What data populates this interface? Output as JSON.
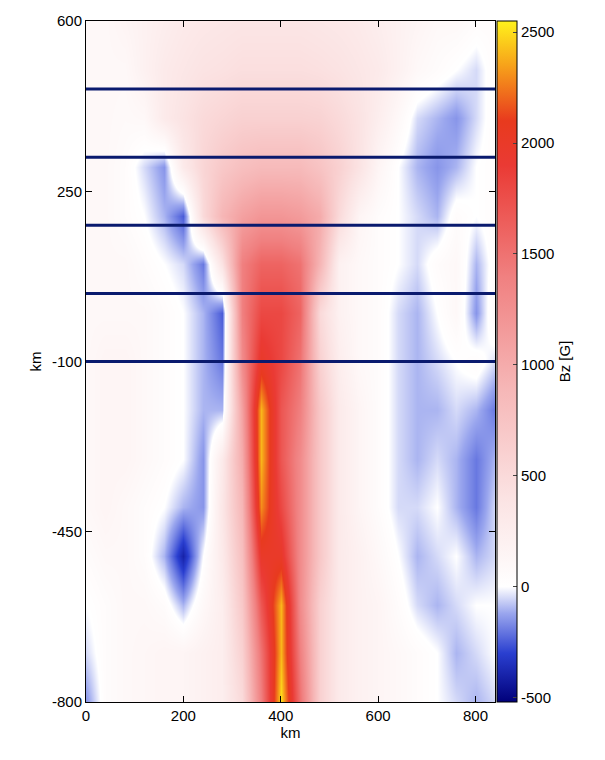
{
  "chart_data": {
    "type": "heatmap",
    "xlabel": "km",
    "ylabel": "km",
    "xlim": [
      0,
      840
    ],
    "ylim": [
      -800,
      600
    ],
    "xticks": [
      0,
      200,
      400,
      600,
      800
    ],
    "yticks": [
      -800,
      -450,
      -100,
      250,
      600
    ],
    "colorbar_title": "Bz [G]",
    "zlim": [
      -520,
      2550
    ],
    "colorbar_ticks": [
      -500,
      0,
      500,
      1000,
      1500,
      2000,
      2500
    ],
    "hlines": [
      -100,
      40,
      180,
      320,
      460
    ],
    "color": "#0a1a6e",
    "x": [
      0,
      40,
      80,
      120,
      160,
      200,
      240,
      280,
      320,
      360,
      400,
      440,
      480,
      520,
      560,
      600,
      640,
      680,
      720,
      760,
      800,
      840
    ],
    "y": [
      -800,
      -700,
      -600,
      -500,
      -400,
      -300,
      -200,
      -100,
      0,
      100,
      200,
      300,
      400,
      500,
      600
    ],
    "z": [
      [
        -150,
        50,
        100,
        120,
        150,
        150,
        200,
        250,
        500,
        1400,
        2500,
        1500,
        600,
        300,
        200,
        150,
        100,
        50,
        0,
        -50,
        -100,
        -50
      ],
      [
        -50,
        50,
        100,
        120,
        150,
        150,
        200,
        250,
        600,
        1500,
        2400,
        1400,
        600,
        300,
        200,
        150,
        100,
        50,
        0,
        -100,
        -50,
        0
      ],
      [
        0,
        50,
        100,
        100,
        50,
        -100,
        100,
        250,
        700,
        1700,
        2400,
        1300,
        600,
        300,
        200,
        150,
        50,
        -50,
        -100,
        -50,
        0,
        0
      ],
      [
        50,
        100,
        100,
        50,
        -100,
        -400,
        0,
        300,
        800,
        2000,
        2000,
        1300,
        700,
        300,
        200,
        100,
        0,
        -100,
        -50,
        0,
        -100,
        -50
      ],
      [
        100,
        150,
        100,
        50,
        0,
        -100,
        -150,
        350,
        900,
        2300,
        1800,
        1300,
        700,
        300,
        150,
        50,
        -50,
        -50,
        0,
        -100,
        -200,
        -50
      ],
      [
        100,
        150,
        150,
        100,
        50,
        0,
        -150,
        300,
        1000,
        2400,
        1700,
        1300,
        700,
        300,
        150,
        50,
        -50,
        -100,
        -50,
        -100,
        -200,
        -100
      ],
      [
        100,
        150,
        150,
        100,
        50,
        0,
        -100,
        -100,
        1100,
        2400,
        1700,
        1400,
        700,
        300,
        150,
        50,
        -50,
        -100,
        -100,
        -50,
        -100,
        -200
      ],
      [
        100,
        150,
        150,
        100,
        50,
        0,
        -100,
        -200,
        1300,
        2000,
        1800,
        1500,
        600,
        250,
        100,
        50,
        -50,
        -100,
        -50,
        0,
        50,
        -50
      ],
      [
        100,
        100,
        100,
        100,
        50,
        0,
        -100,
        -250,
        1400,
        1800,
        1800,
        1600,
        500,
        200,
        100,
        50,
        -50,
        -100,
        0,
        100,
        -150,
        100
      ],
      [
        100,
        100,
        100,
        50,
        0,
        -50,
        -200,
        400,
        1400,
        1600,
        1600,
        1500,
        900,
        200,
        100,
        50,
        0,
        -50,
        50,
        100,
        -100,
        50
      ],
      [
        100,
        100,
        50,
        0,
        -100,
        -250,
        500,
        900,
        1100,
        1200,
        1200,
        1150,
        1000,
        500,
        150,
        50,
        0,
        -50,
        -100,
        50,
        0,
        50
      ],
      [
        100,
        100,
        50,
        -50,
        -150,
        300,
        550,
        700,
        800,
        850,
        850,
        850,
        750,
        600,
        400,
        150,
        0,
        -100,
        -150,
        -100,
        0,
        50
      ],
      [
        100,
        100,
        80,
        100,
        300,
        400,
        500,
        550,
        600,
        600,
        600,
        600,
        580,
        500,
        400,
        250,
        100,
        -50,
        -100,
        -150,
        -50,
        50
      ],
      [
        100,
        100,
        100,
        200,
        300,
        350,
        400,
        420,
        450,
        450,
        450,
        450,
        430,
        400,
        350,
        300,
        200,
        100,
        50,
        0,
        -50,
        50
      ],
      [
        100,
        100,
        150,
        200,
        250,
        300,
        330,
        350,
        370,
        370,
        370,
        370,
        350,
        330,
        300,
        250,
        200,
        150,
        100,
        100,
        50,
        50
      ]
    ]
  }
}
